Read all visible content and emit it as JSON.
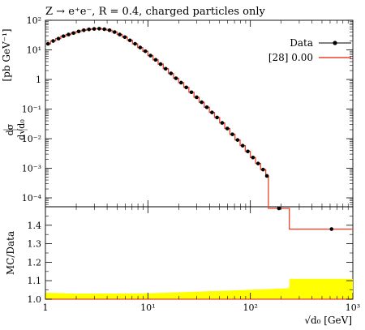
{
  "title": "Z → e⁺e⁻, R = 0.4, charged particles only",
  "main_ylabel_unit": "[pb GeV⁻¹]",
  "ratio_ylabel": "MC/Data",
  "xlabel": "√d₀ [GeV]",
  "legend": {
    "data_label": "Data",
    "mc_label": "[28] 0.00"
  },
  "colors": {
    "data": "#000000",
    "mc": "#e8432a",
    "band": "#ffff00"
  },
  "chart_data": [
    {
      "type": "line",
      "panel": "main",
      "x_scale": "log",
      "y_scale": "log",
      "xlim": [
        1,
        1000
      ],
      "ylim": [
        5e-05,
        100
      ],
      "x_ticks": [
        "1",
        "10¹",
        "10²",
        "10³"
      ],
      "y_ticks": [
        "10⁻⁴",
        "10⁻³",
        "10⁻²",
        "10⁻¹",
        "1",
        "10¹",
        "10²"
      ],
      "bin_edges": [
        1.0,
        1.122,
        1.259,
        1.413,
        1.585,
        1.778,
        1.995,
        2.239,
        2.512,
        2.818,
        3.162,
        3.548,
        3.981,
        4.467,
        5.012,
        5.623,
        6.31,
        7.079,
        7.943,
        8.913,
        10.0,
        11.22,
        12.59,
        14.13,
        15.85,
        17.78,
        19.95,
        22.39,
        25.12,
        28.18,
        31.62,
        35.48,
        39.81,
        44.67,
        50.12,
        56.23,
        63.1,
        70.79,
        79.43,
        89.13,
        100.0,
        112.2,
        125.9,
        141.3,
        150.0,
        240.0,
        1000.0
      ],
      "series": [
        {
          "name": "Data",
          "x": [
            1.06,
            1.19,
            1.34,
            1.5,
            1.68,
            1.88,
            2.11,
            2.37,
            2.66,
            2.99,
            3.35,
            3.76,
            4.22,
            4.73,
            5.31,
            5.96,
            6.68,
            7.5,
            8.41,
            9.44,
            10.6,
            11.9,
            13.3,
            14.9,
            16.8,
            18.8,
            21.1,
            23.7,
            26.6,
            29.9,
            33.5,
            37.6,
            42.2,
            47.3,
            53.1,
            59.6,
            66.8,
            75.0,
            84.1,
            94.4,
            106.0,
            119.0,
            133.0,
            145.0,
            190.0,
            620.0
          ],
          "values": [
            16,
            20,
            24,
            29,
            33,
            37,
            42,
            46,
            49,
            51,
            52,
            50,
            46,
            40,
            33,
            27,
            21,
            16,
            12,
            9.0,
            6.4,
            4.6,
            3.3,
            2.3,
            1.6,
            1.1,
            0.78,
            0.54,
            0.37,
            0.25,
            0.17,
            0.115,
            0.077,
            0.052,
            0.034,
            0.022,
            0.014,
            0.009,
            0.0058,
            0.0037,
            0.0023,
            0.00145,
            0.0009,
            0.00055,
            4.4e-05,
            8.8e-06
          ]
        },
        {
          "name": "[28] 0.00",
          "x": [
            1.06,
            1.19,
            1.34,
            1.5,
            1.68,
            1.88,
            2.11,
            2.37,
            2.66,
            2.99,
            3.35,
            3.76,
            4.22,
            4.73,
            5.31,
            5.96,
            6.68,
            7.5,
            8.41,
            9.44,
            10.6,
            11.9,
            13.3,
            14.9,
            16.8,
            18.8,
            21.1,
            23.7,
            26.6,
            29.9,
            33.5,
            37.6,
            42.2,
            47.3,
            53.1,
            59.6,
            66.8,
            75.0,
            84.1,
            94.4,
            106.0,
            119.0,
            133.0,
            145.0,
            190.0,
            620.0
          ],
          "values": [
            16,
            20,
            24,
            29,
            33,
            37,
            42,
            46,
            49,
            51,
            52,
            50,
            46,
            40,
            33,
            27,
            21,
            16,
            12,
            9.0,
            6.4,
            4.6,
            3.3,
            2.3,
            1.6,
            1.1,
            0.78,
            0.54,
            0.37,
            0.25,
            0.17,
            0.115,
            0.077,
            0.052,
            0.034,
            0.022,
            0.014,
            0.009,
            0.0058,
            0.0037,
            0.0023,
            0.00145,
            0.0009,
            0.00055,
            4.4e-05,
            8.8e-06
          ]
        }
      ],
      "grid": false,
      "legend_position": "top-right"
    },
    {
      "type": "area",
      "panel": "ratio",
      "x_scale": "log",
      "xlim": [
        1,
        1000
      ],
      "ylim": [
        1.0,
        1.5
      ],
      "y_ticks": [
        "1.0",
        "1.1",
        "1.2",
        "1.3",
        "1.4"
      ],
      "band": {
        "x": [
          1,
          2,
          10,
          50,
          150,
          240,
          241,
          1000
        ],
        "upper": [
          1.035,
          1.03,
          1.032,
          1.045,
          1.055,
          1.06,
          1.11,
          1.11
        ]
      },
      "grid": false
    }
  ]
}
